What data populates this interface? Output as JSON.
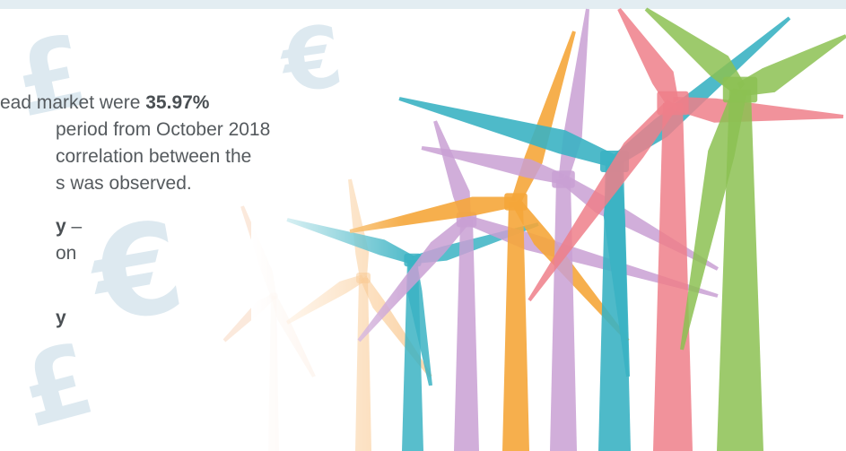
{
  "decor_symbols": [
    "£",
    "€",
    "€",
    "£"
  ],
  "body": {
    "line1": {
      "text": "ead market were ",
      "bold": "35.97%"
    },
    "line2": "period from October 2018",
    "line3": "correlation between the",
    "line4": "s was observed.",
    "line5": {
      "bold": "y",
      "text": " –"
    },
    "line6": "on",
    "line7": {
      "bold": "y"
    }
  }
}
